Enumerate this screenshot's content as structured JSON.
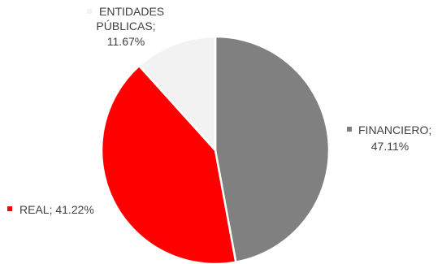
{
  "chart_data": {
    "type": "pie",
    "slices": [
      {
        "label": "FINANCIERO",
        "value": 47.11,
        "value_text": "47.11%",
        "color": "#808080"
      },
      {
        "label": "REAL",
        "value": 41.22,
        "value_text": "41.22%",
        "color": "#ff0000"
      },
      {
        "label": "ENTIDADES PÚBLICAS",
        "label_lines": [
          "ENTIDADES",
          "PÚBLICAS;"
        ],
        "value": 11.67,
        "value_text": "11.67%",
        "color": "#f2f2f2"
      }
    ],
    "slice_border_color": "#ffffff",
    "data_labels": "outside with legend key",
    "legend": "none"
  }
}
